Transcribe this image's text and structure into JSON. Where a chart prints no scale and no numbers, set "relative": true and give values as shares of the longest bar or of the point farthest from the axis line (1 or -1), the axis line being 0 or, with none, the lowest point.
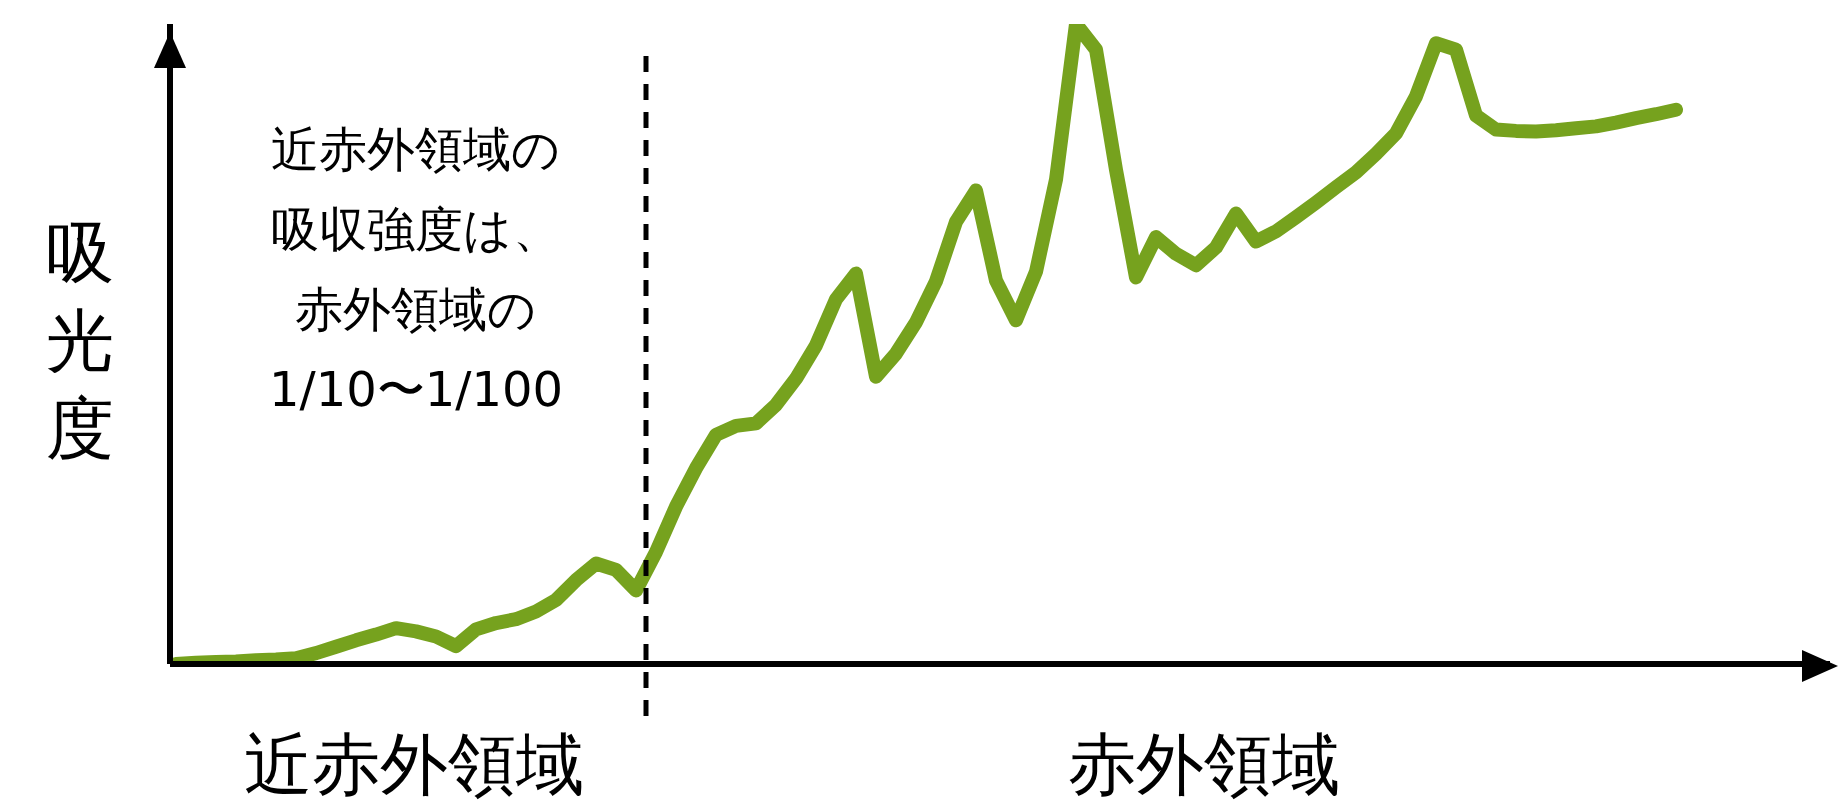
{
  "chart_data": {
    "type": "line",
    "relative": true,
    "ylabel": "吸光度",
    "marker": "none",
    "line_style": "solid",
    "annotations": [
      "近赤外領域の",
      "吸収強度は、",
      "赤外領域の",
      "1/10〜1/100",
      "近赤外領域",
      "赤外領域"
    ],
    "categories": [
      null,
      null,
      null,
      null,
      null,
      null,
      null,
      null,
      null,
      null,
      null,
      null,
      null,
      null,
      null,
      null,
      null,
      null,
      null,
      null,
      null,
      null,
      null,
      null,
      null,
      null,
      null,
      null,
      null,
      null,
      null,
      null,
      null,
      null,
      null,
      null,
      null,
      null,
      null,
      null,
      null,
      null,
      null,
      null,
      null,
      null,
      null,
      null,
      null,
      null,
      null,
      null,
      null,
      null,
      null,
      null,
      null,
      null,
      null,
      null,
      null,
      null,
      null,
      null,
      null,
      null,
      null,
      null,
      null,
      null,
      null,
      null,
      null,
      null,
      null,
      null
    ],
    "series": [
      {
        "color": "#76a21e",
        "values": [
          0,
          0.002,
          0.003,
          0.004,
          0.006,
          0.007,
          0.009,
          0.017,
          0.027,
          0.037,
          0.046,
          0.056,
          0.051,
          0.043,
          0.028,
          0.054,
          0.064,
          0.07,
          0.082,
          0.1,
          0.131,
          0.157,
          0.147,
          0.115,
          0.175,
          0.246,
          0.306,
          0.358,
          0.372,
          0.376,
          0.405,
          0.446,
          0.498,
          0.57,
          0.61,
          0.449,
          0.485,
          0.534,
          0.598,
          0.691,
          0.74,
          0.599,
          0.537,
          0.613,
          0.757,
          1,
          0.96,
          0.772,
          0.604,
          0.667,
          0.641,
          0.623,
          0.651,
          0.704,
          0.66,
          0.676,
          0.698,
          0.721,
          0.745,
          0.768,
          0.797,
          0.829,
          0.887,
          0.97,
          0.96,
          0.857,
          0.835,
          0.833,
          0.832,
          0.834,
          0.837,
          0.84,
          0.846,
          0.853,
          0.859,
          0.866
        ]
      }
    ]
  }
}
